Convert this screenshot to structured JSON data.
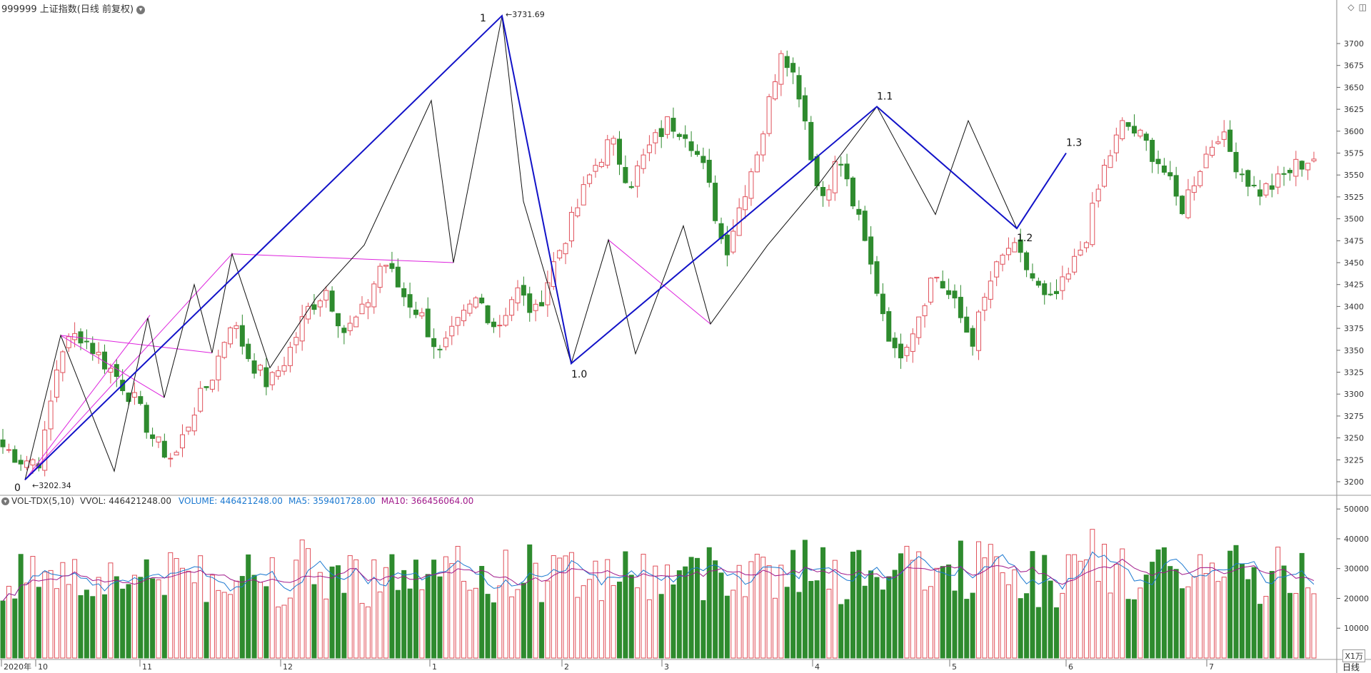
{
  "header": {
    "title": "999999 上证指数(日线 前复权)",
    "menu_icon": "chevron-down-icon",
    "right_icons": [
      "diamond-icon",
      "panel-toggle-icon"
    ]
  },
  "price_axis": {
    "min": 3200,
    "max": 3700,
    "step": 25,
    "ticks": [
      "3700",
      "3675",
      "3650",
      "3625",
      "3600",
      "3575",
      "3550",
      "3525",
      "3500",
      "3475",
      "3450",
      "3425",
      "3400",
      "3375",
      "3350",
      "3325",
      "3300",
      "3275",
      "3250",
      "3225",
      "3200"
    ]
  },
  "volume_axis": {
    "ticks": [
      "50000",
      "40000",
      "30000",
      "20000",
      "10000"
    ],
    "unit": "X1万"
  },
  "time_axis": {
    "labels": [
      "2020年",
      "10",
      "11",
      "12",
      "1",
      "2",
      "3",
      "4",
      "5",
      "6",
      "7"
    ]
  },
  "annotations": {
    "low": "3202.34",
    "high": "3731.69",
    "wave_labels": [
      "0",
      "1",
      "1.0",
      "1.1",
      "1.2",
      "1.3"
    ]
  },
  "volume_header": {
    "indicator": "VOL-TDX(5,10)",
    "vvol": "VVOL: 446421248.00",
    "volume": "VOLUME: 446421248.00",
    "ma5": "MA5: 359401728.00",
    "ma10": "MA10: 366456064.00"
  },
  "period": "日线",
  "colors": {
    "up": "#e0505a",
    "down": "#2e8b2e",
    "wave_major": "#1212c8",
    "wave_minor": "#111111",
    "wave_pink": "#dd22dd",
    "ma5": "#1a78d0",
    "ma10": "#a0198a"
  },
  "chart_data": {
    "type": "candlestick",
    "title": "999999 上证指数(日线 前复权)",
    "x_start": "2020年9月",
    "x_end": "2021年7月",
    "price_range": [
      3200,
      3731.69
    ],
    "price_low": 3202.34,
    "price_high": 3731.69,
    "close_path": [
      3240,
      3225,
      3225,
      3350,
      3370,
      3345,
      3320,
      3290,
      3245,
      3225,
      3280,
      3320,
      3385,
      3340,
      3310,
      3345,
      3395,
      3420,
      3370,
      3395,
      3455,
      3415,
      3390,
      3345,
      3380,
      3410,
      3375,
      3420,
      3390,
      3450,
      3500,
      3555,
      3590,
      3540,
      3580,
      3610,
      3600,
      3550,
      3460,
      3530,
      3600,
      3700,
      3640,
      3520,
      3570,
      3500,
      3420,
      3340,
      3380,
      3440,
      3405,
      3360,
      3430,
      3470,
      3440,
      3400,
      3430,
      3480,
      3560,
      3610,
      3590,
      3560,
      3510,
      3560,
      3600,
      3560,
      3530,
      3540,
      3560,
      3570
    ],
    "waves": [
      {
        "label": "0 → 1",
        "points": [
          3202.34,
          3731.69
        ]
      },
      {
        "label": "1 → 1.0",
        "points": [
          3731.69,
          3335
        ]
      },
      {
        "label": "1.0 → 1.1",
        "points": [
          3335,
          3628
        ]
      },
      {
        "label": "1.1 → 1.2",
        "points": [
          3628,
          3489
        ]
      },
      {
        "label": "1.2 → 1.3",
        "points": [
          3489,
          3575
        ]
      }
    ],
    "volume_series": [
      {
        "name": "VOLUME",
        "last": 446421248.0
      },
      {
        "name": "MA5",
        "last": 359401728.0
      },
      {
        "name": "MA10",
        "last": 366456064.0
      }
    ],
    "ylabel_unit": "X1万"
  }
}
